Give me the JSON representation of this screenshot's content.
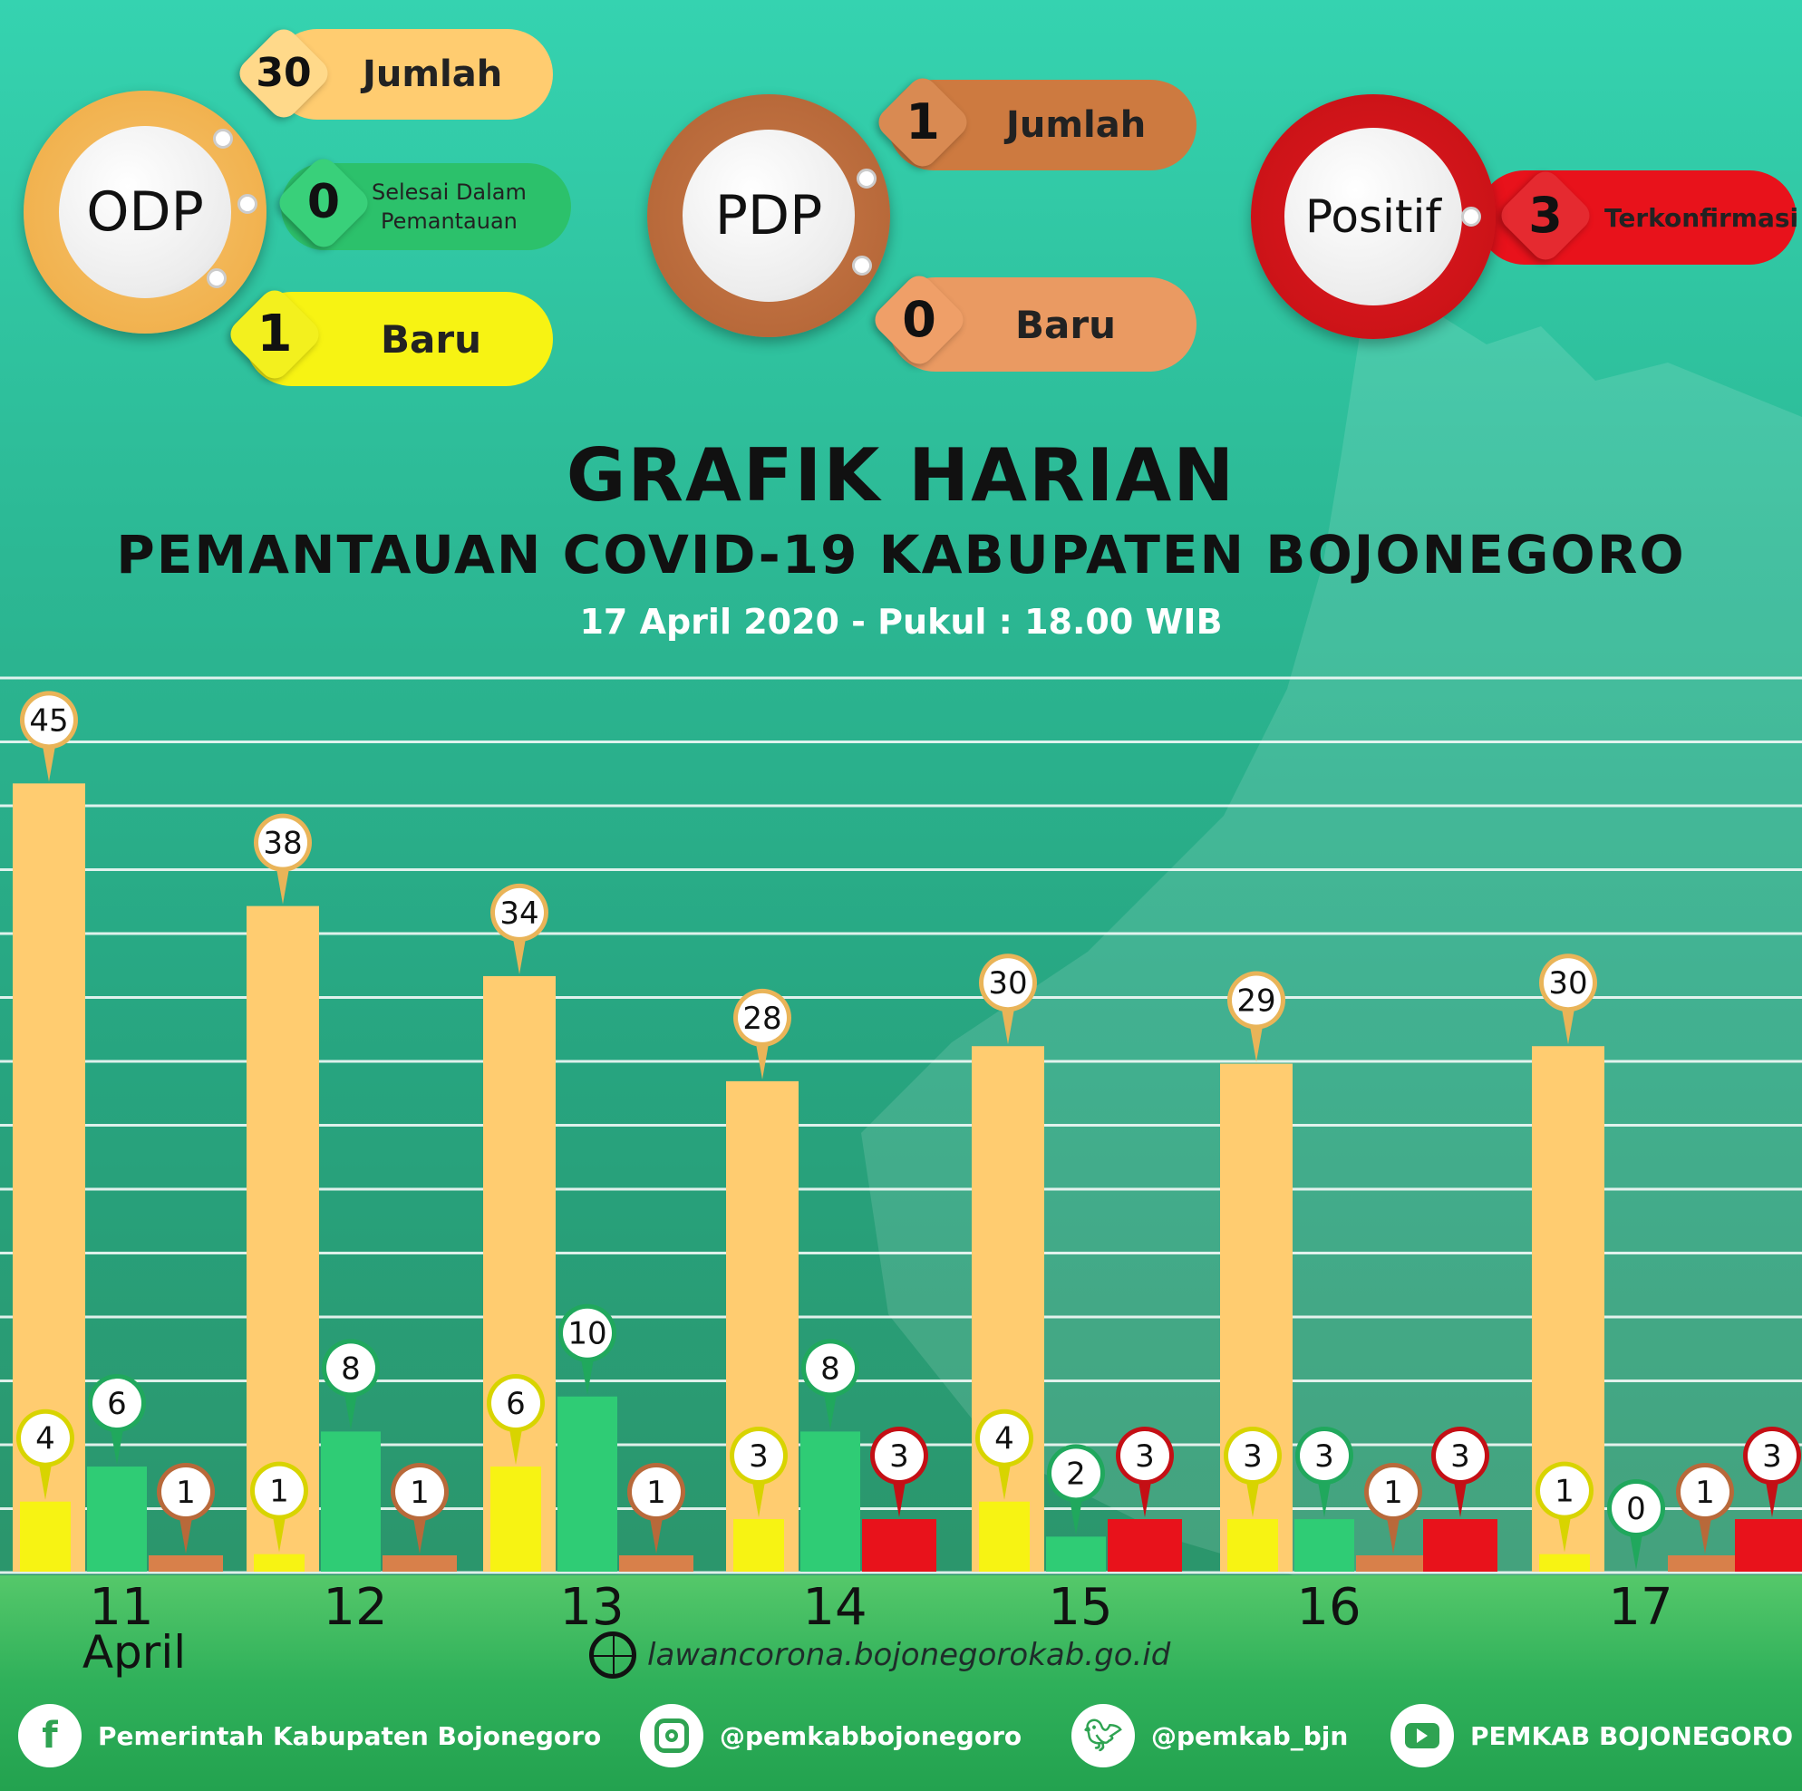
{
  "header": {
    "odp": {
      "label": "ODP",
      "total_value": "30",
      "total_label": "Jumlah",
      "finished_value": "0",
      "finished_label_1": "Selesai Dalam",
      "finished_label_2": "Pemantauan",
      "new_value": "1",
      "new_label": "Baru"
    },
    "pdp": {
      "label": "PDP",
      "total_value": "1",
      "total_label": "Jumlah",
      "new_value": "0",
      "new_label": "Baru"
    },
    "positif": {
      "label": "Positif",
      "value": "3",
      "value_label": "Terkonfirmasi"
    }
  },
  "title": "GRAFIK HARIAN",
  "subtitle": "PEMANTAUAN COVID-19 KABUPATEN BOJONEGORO",
  "date_line": "17 April 2020 - Pukul : 18.00 WIB",
  "colors": {
    "odp_total": "#ffcc70",
    "odp_new": "#f7f313",
    "odp_finished": "#2fcc75",
    "pdp": "#d8804a",
    "positif": "#e8121b"
  },
  "chart_data": {
    "type": "bar",
    "categories": [
      "11",
      "12",
      "13",
      "14",
      "15",
      "16",
      "17"
    ],
    "month_label": "April",
    "series": [
      {
        "values": [
          45,
          38,
          34,
          28,
          30,
          29,
          30
        ]
      },
      {
        "values": [
          4,
          1,
          6,
          3,
          4,
          3,
          1
        ]
      },
      {
        "values": [
          6,
          8,
          10,
          8,
          2,
          3,
          0
        ]
      },
      {
        "values": [
          1,
          1,
          1,
          null,
          null,
          1,
          1
        ]
      },
      {
        "values": [
          null,
          null,
          null,
          3,
          3,
          3,
          3
        ]
      }
    ],
    "ylim": [
      0,
      50
    ],
    "grid": true
  },
  "footer": {
    "url": "lawancorona.bojonegorokab.go.id",
    "facebook": "Pemerintah Kabupaten Bojonegoro",
    "instagram": "@pemkabbojonegoro",
    "twitter": "@pemkab_bjn",
    "youtube": "PEMKAB BOJONEGORO"
  }
}
